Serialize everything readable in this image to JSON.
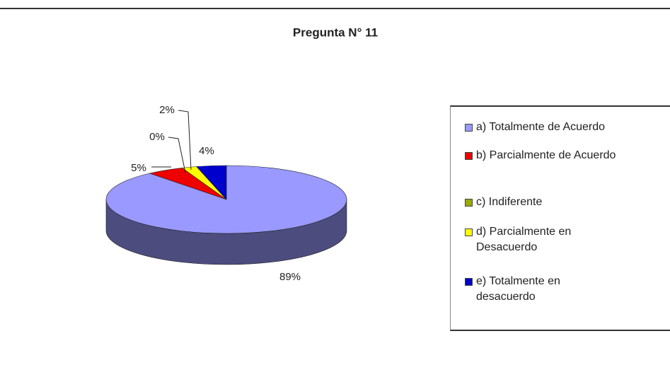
{
  "chart_data": {
    "type": "pie",
    "title": "Pregunta N° 11",
    "categories": [
      "a) Totalmente de Acuerdo",
      "b) Parcialmente de Acuerdo",
      "c) Indiferente",
      "d) Parcialmente en Desacuerdo",
      "e) Totalmente en desacuerdo"
    ],
    "values": [
      89,
      5,
      0,
      2,
      4
    ],
    "value_labels": [
      "89%",
      "5%",
      "0%",
      "2%",
      "4%"
    ],
    "colors": [
      "#9999ff",
      "#ee0000",
      "#99aa00",
      "#ffff00",
      "#0000cc"
    ],
    "legend": "right"
  }
}
